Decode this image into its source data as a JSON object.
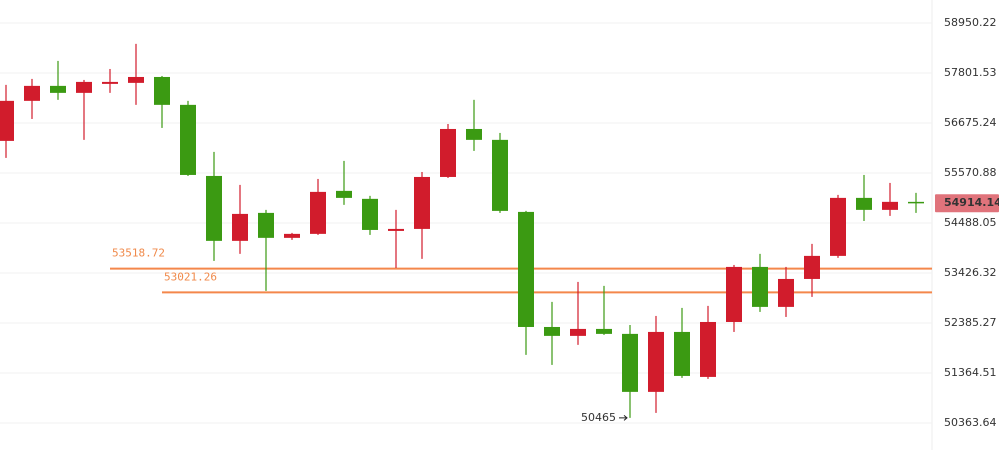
{
  "chart_data": {
    "type": "candlestick",
    "log": true,
    "ylim": [
      49831,
      59486
    ],
    "yticks": [
      58950.22,
      57801.53,
      56675.24,
      55570.88,
      54488.05,
      53426.32,
      52385.27,
      51364.51,
      50363.64
    ],
    "grid": true,
    "up_color": "#d11c2c",
    "down_color": "#3b9a12",
    "categories": [
      null,
      null,
      null,
      null,
      null,
      null,
      null,
      null,
      null,
      null,
      null,
      null,
      null,
      null,
      null,
      null,
      null,
      null,
      null,
      null,
      null,
      null,
      null,
      null,
      null,
      null,
      null,
      null,
      null,
      null,
      null,
      null,
      null,
      null,
      null,
      null
    ],
    "series": [
      {
        "open": [
          56277,
          57171,
          57509,
          57351,
          57554,
          57577,
          57711,
          57081,
          55506,
          54106,
          54705,
          54170,
          54255,
          55181,
          55008,
          54318,
          54361,
          55484,
          56542,
          56300,
          54726,
          52303,
          52120,
          52263,
          52161,
          50984,
          52201,
          51285,
          52406,
          53554,
          52718,
          53301,
          53787,
          55029,
          54770,
          54943
        ],
        "high": [
          57532,
          57667,
          58077,
          57644,
          57893,
          58468,
          57734,
          57171,
          56034,
          55311,
          54770,
          54276,
          55441,
          55836,
          55073,
          54770,
          55593,
          56653,
          57194,
          56454,
          54748,
          52822,
          53239,
          53156,
          52344,
          52531,
          52697,
          52739,
          53596,
          53830,
          53554,
          54042,
          55094,
          55528,
          55354,
          55138
        ],
        "low": [
          55902,
          56765,
          57194,
          56300,
          57351,
          57081,
          56565,
          55506,
          53681,
          53830,
          53051,
          54127,
          54233,
          54878,
          54233,
          53532,
          53724,
          55462,
          56056,
          54705,
          51732,
          51528,
          51936,
          52140,
          50465,
          50564,
          51265,
          51245,
          52201,
          52614,
          52510,
          52926,
          53745,
          54531,
          54640,
          54705
        ],
        "close": [
          57171,
          57509,
          57351,
          57599,
          57599,
          57711,
          57081,
          55528,
          54106,
          54683,
          54170,
          54255,
          55159,
          55029,
          54339,
          54361,
          55484,
          56542,
          56300,
          54748,
          52303,
          52120,
          52263,
          52161,
          50984,
          52201,
          51305,
          52406,
          53554,
          52718,
          53301,
          53787,
          55029,
          54770,
          54943,
          54914.14
        ]
      }
    ],
    "levels": [
      53518.72,
      53021.26
    ]
  }
}
